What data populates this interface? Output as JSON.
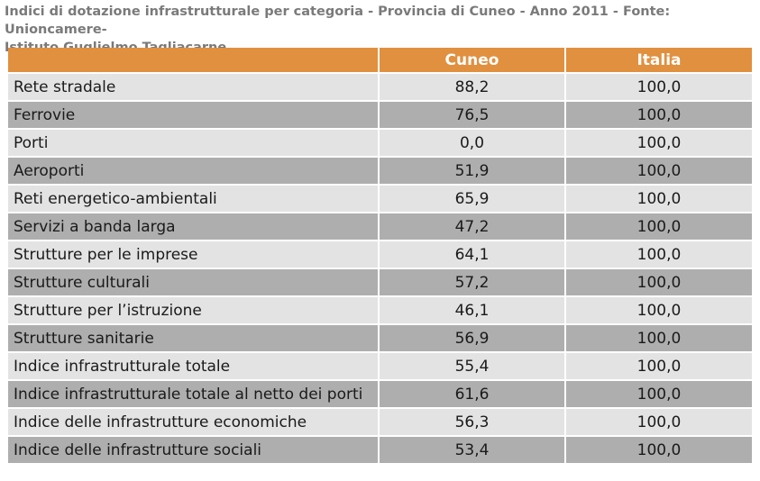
{
  "caption_line1": "Indici di dotazione infrastrutturale per categoria - Provincia di Cuneo - Anno 2011 - Fonte: Unioncamere-",
  "caption_line2": "Istituto Guglielmo Tagliacarne",
  "colors": {
    "header": "#e0903f",
    "row_light": "#e3e3e3",
    "row_dark": "#aeaeae",
    "caption": "#7a7a7a"
  },
  "table": {
    "headers": [
      "",
      "Cuneo",
      "Italia"
    ],
    "rows": [
      {
        "label": "Rete stradale",
        "cuneo": "88,2",
        "italia": "100,0"
      },
      {
        "label": "Ferrovie",
        "cuneo": "76,5",
        "italia": "100,0"
      },
      {
        "label": "Porti",
        "cuneo": "0,0",
        "italia": "100,0"
      },
      {
        "label": "Aeroporti",
        "cuneo": "51,9",
        "italia": "100,0"
      },
      {
        "label": "Reti energetico-ambientali",
        "cuneo": "65,9",
        "italia": "100,0"
      },
      {
        "label": "Servizi a banda larga",
        "cuneo": "47,2",
        "italia": "100,0"
      },
      {
        "label": "Strutture per le imprese",
        "cuneo": "64,1",
        "italia": "100,0"
      },
      {
        "label": "Strutture culturali",
        "cuneo": "57,2",
        "italia": "100,0"
      },
      {
        "label": "Strutture per l’istruzione",
        "cuneo": "46,1",
        "italia": "100,0"
      },
      {
        "label": "Strutture sanitarie",
        "cuneo": "56,9",
        "italia": "100,0"
      },
      {
        "label": "Indice infrastrutturale totale",
        "cuneo": "55,4",
        "italia": "100,0"
      },
      {
        "label": "Indice infrastrutturale totale al netto dei porti",
        "cuneo": "61,6",
        "italia": "100,0"
      },
      {
        "label": "Indice delle infrastrutture economiche",
        "cuneo": "56,3",
        "italia": "100,0"
      },
      {
        "label": "Indice delle infrastrutture sociali",
        "cuneo": "53,4",
        "italia": "100,0"
      }
    ]
  }
}
